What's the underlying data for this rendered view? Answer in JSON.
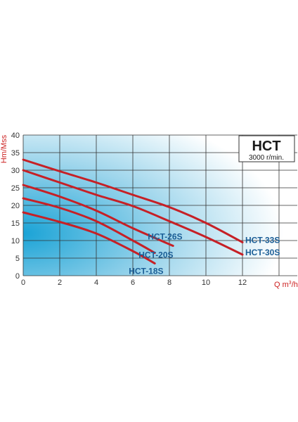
{
  "chart_data": {
    "type": "line",
    "title": "HCT",
    "subtitle": "3000 r/min.",
    "xlabel_main": "Q m",
    "xlabel_sup": "3",
    "xlabel_tail": "/h",
    "ylabel": "Hm/Mss",
    "xlim": [
      0,
      15
    ],
    "ylim": [
      0,
      40
    ],
    "xticks": [
      0,
      2,
      4,
      6,
      8,
      10,
      12
    ],
    "yticks": [
      0,
      5,
      10,
      15,
      20,
      25,
      30,
      35,
      40
    ],
    "xgrid": [
      0,
      2,
      4,
      6,
      8,
      10,
      12,
      14
    ],
    "grid": true,
    "colors": {
      "curve": "#c62026",
      "label": "#1b5e96",
      "grid": "#333333",
      "gradient_start": "#1aa3d6",
      "gradient_end": "#ffffff"
    },
    "series": [
      {
        "name": "HCT-33S",
        "x": [
          0,
          2,
          4,
          6,
          8,
          10,
          12
        ],
        "y": [
          33,
          29.7,
          26.5,
          23,
          19.5,
          15,
          9.5
        ]
      },
      {
        "name": "HCT-30S",
        "x": [
          0,
          2,
          4,
          6,
          8,
          10,
          12
        ],
        "y": [
          30,
          26.5,
          23,
          19.8,
          15.5,
          11,
          6
        ]
      },
      {
        "name": "HCT-26S",
        "x": [
          0,
          2,
          4,
          6,
          8.2
        ],
        "y": [
          25.8,
          22.5,
          18.5,
          13.5,
          8.5
        ]
      },
      {
        "name": "HCT-20S",
        "x": [
          0,
          2,
          4,
          6,
          7.2
        ],
        "y": [
          22,
          19.3,
          15.5,
          10,
          6.5
        ]
      },
      {
        "name": "HCT-18S",
        "x": [
          0,
          2,
          4,
          6,
          7.2
        ],
        "y": [
          18,
          15.3,
          12,
          7,
          3.5
        ]
      }
    ]
  }
}
